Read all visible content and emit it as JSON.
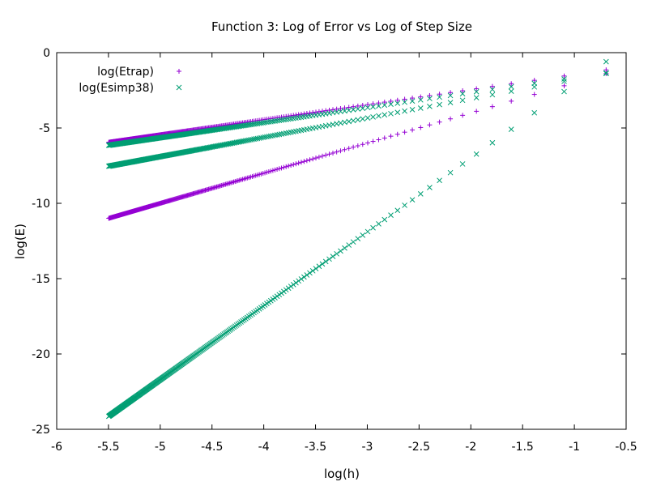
{
  "chart_data": {
    "type": "scatter",
    "title": "Function 3: Log of Error vs Log of Step Size",
    "xlabel": "log(h)",
    "ylabel": "log(E)",
    "xlim": [
      -6,
      -0.5
    ],
    "ylim": [
      -25,
      0
    ],
    "x_ticks": [
      "-6",
      "-5.5",
      "-5",
      "-4.5",
      "-4",
      "-3.5",
      "-3",
      "-2.5",
      "-2",
      "-1.5",
      "-1",
      "-0.5"
    ],
    "y_ticks": [
      "0",
      "-5",
      "-10",
      "-15",
      "-20",
      "-25"
    ],
    "legend": "top-left",
    "grid": false,
    "series": [
      {
        "name": "log(Etrap)",
        "marker": "plus",
        "color": "#9400d3",
        "branches": [
          {
            "x_range": [
              -5.5,
              -0.693
            ],
            "slope": 2.0,
            "intercept": 0.0
          },
          {
            "x_range": [
              -5.5,
              -0.693
            ],
            "slope": 1.0,
            "intercept": -0.45
          }
        ]
      },
      {
        "name": "log(Esimp38)",
        "marker": "x",
        "color": "#009e73",
        "branches": [
          {
            "x_range": [
              -5.5,
              -0.693
            ],
            "slope": 4.9,
            "intercept": 2.8
          },
          {
            "x_range": [
              -5.5,
              -0.693
            ],
            "slope": 1.28,
            "intercept": -0.5
          },
          {
            "x_range": [
              -5.5,
              -0.693
            ],
            "slope": 1.0,
            "intercept": -0.65
          }
        ]
      }
    ]
  }
}
